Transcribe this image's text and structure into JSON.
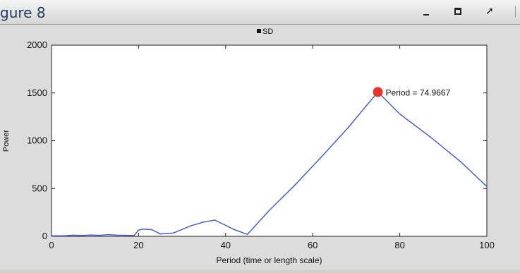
{
  "window": {
    "title": "gure 8",
    "controls": [
      "minimize-icon",
      "maximize-icon",
      "dock-arrow-icon"
    ]
  },
  "colors": {
    "line": "#4a5fc8",
    "marker": "#e8352b",
    "axes_bg": "#ffffff",
    "figure_bg": "#dcdcdc"
  },
  "chart_data": {
    "type": "line",
    "title": "",
    "legend": {
      "entries": [
        "SD"
      ],
      "placement": "top-center"
    },
    "xlabel": "Period (time or length scale)",
    "ylabel": "Power",
    "xlim": [
      0,
      100
    ],
    "ylim": [
      0,
      2000
    ],
    "xticks": [
      0,
      20,
      40,
      60,
      80,
      100
    ],
    "yticks": [
      0,
      500,
      1000,
      1500,
      2000
    ],
    "series": [
      {
        "x": [
          0,
          3,
          5,
          7,
          9,
          11,
          13,
          15,
          17,
          19,
          20,
          21,
          23,
          25,
          28,
          32,
          35,
          37.5,
          40,
          42,
          45,
          50,
          56,
          62,
          68,
          74.9667,
          80,
          87,
          94,
          100
        ],
        "y": [
          5,
          6,
          12,
          8,
          14,
          10,
          18,
          12,
          10,
          8,
          65,
          75,
          70,
          25,
          35,
          110,
          150,
          170,
          115,
          70,
          20,
          270,
          540,
          830,
          1130,
          1510,
          1280,
          1040,
          780,
          520
        ]
      }
    ],
    "highlight": {
      "x": 74.9667,
      "y": 1510,
      "label": "Period = 74.9667"
    }
  }
}
